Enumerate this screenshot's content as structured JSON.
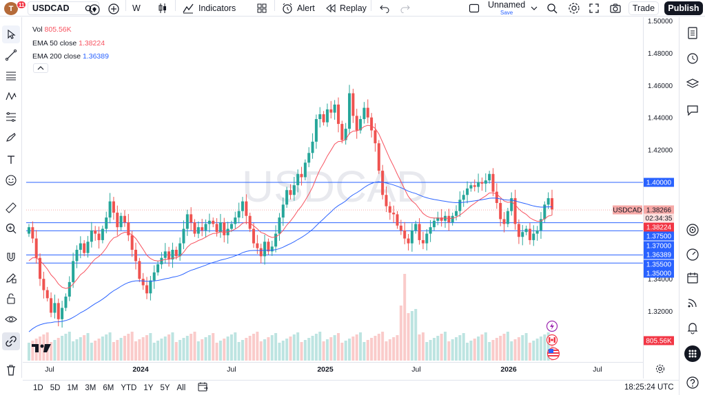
{
  "topbar": {
    "avatar_letter": "T",
    "notification_count": "11",
    "symbol": "USDCAD",
    "interval": "W",
    "indicators_label": "Indicators",
    "alert_label": "Alert",
    "replay_label": "Replay",
    "layout_name": "Unnamed",
    "layout_status": "Save",
    "trade_label": "Trade",
    "publish_label": "Publish"
  },
  "legend": {
    "vol_label": "Vol",
    "vol_value": "805.56K",
    "ema50_label": "EMA 50 close",
    "ema50_value": "1.38224",
    "ema200_label": "EMA 200 close",
    "ema200_value": "1.36389"
  },
  "watermark": "USDCAD",
  "price_axis": {
    "ticks": [
      "1.50000",
      "1.48000",
      "1.46000",
      "1.44000",
      "1.42000",
      "1.40000",
      "1.37000",
      "1.35500",
      "1.34000",
      "1.32000"
    ],
    "tags": [
      {
        "text": "1.40000",
        "color": "#2962ff",
        "price": 1.4
      },
      {
        "text": "USDCAD",
        "color": "#f7a9a7",
        "price": 1.38266
      },
      {
        "text": "1.38266",
        "color": "#f7a9a7",
        "price": 1.38266
      },
      {
        "text": "02:34:35",
        "color": "#f7a9a7",
        "price": 1.38266
      },
      {
        "text": "1.38224",
        "color": "#f23645",
        "price": 1.38224
      },
      {
        "text": "1.37500",
        "color": "#2962ff",
        "price": 1.375
      },
      {
        "text": "1.37000",
        "color": "#2962ff",
        "price": 1.37
      },
      {
        "text": "1.36389",
        "color": "#2962ff",
        "price": 1.36389
      },
      {
        "text": "1.35500",
        "color": "#2962ff",
        "price": 1.355
      },
      {
        "text": "1.35000",
        "color": "#2962ff",
        "price": 1.35
      },
      {
        "text": "805.56K",
        "color": "#f23645",
        "price": null
      }
    ]
  },
  "time_axis": {
    "labels": [
      "Jul",
      "2024",
      "Jul",
      "2025",
      "Jul",
      "2026",
      "Jul"
    ]
  },
  "horizontal_lines": [
    1.4,
    1.375,
    1.37,
    1.355,
    1.35
  ],
  "bottombar": {
    "timeframes": [
      "1D",
      "5D",
      "1M",
      "3M",
      "6M",
      "YTD",
      "1Y",
      "5Y",
      "All"
    ],
    "clock": "18:25:24 UTC"
  },
  "colors": {
    "up": "#26a69a",
    "down": "#ef5350",
    "ema50": "#f7525f",
    "ema200": "#2962ff",
    "hline": "#2962ff"
  },
  "chart_data": {
    "type": "candlestick",
    "symbol": "USDCAD",
    "interval": "W",
    "ylim": [
      1.3,
      1.5
    ],
    "closes": [
      1.372,
      1.365,
      1.353,
      1.34,
      1.333,
      1.328,
      1.319,
      1.325,
      1.315,
      1.322,
      1.329,
      1.338,
      1.351,
      1.358,
      1.362,
      1.356,
      1.363,
      1.37,
      1.368,
      1.364,
      1.371,
      1.378,
      1.388,
      1.381,
      1.372,
      1.379,
      1.375,
      1.367,
      1.358,
      1.351,
      1.34,
      1.336,
      1.331,
      1.339,
      1.344,
      1.349,
      1.353,
      1.357,
      1.352,
      1.358,
      1.354,
      1.362,
      1.371,
      1.38,
      1.375,
      1.368,
      1.372,
      1.37,
      1.374,
      1.376,
      1.374,
      1.369,
      1.375,
      1.367,
      1.371,
      1.374,
      1.378,
      1.382,
      1.388,
      1.379,
      1.371,
      1.362,
      1.359,
      1.354,
      1.363,
      1.357,
      1.36,
      1.368,
      1.378,
      1.386,
      1.395,
      1.392,
      1.398,
      1.405,
      1.403,
      1.412,
      1.418,
      1.425,
      1.439,
      1.442,
      1.437,
      1.445,
      1.443,
      1.448,
      1.436,
      1.426,
      1.433,
      1.455,
      1.441,
      1.432,
      1.439,
      1.446,
      1.44,
      1.432,
      1.424,
      1.407,
      1.392,
      1.385,
      1.381,
      1.38,
      1.373,
      1.37,
      1.365,
      1.362,
      1.37,
      1.374,
      1.364,
      1.362,
      1.368,
      1.372,
      1.376,
      1.378,
      1.376,
      1.379,
      1.375,
      1.379,
      1.382,
      1.389,
      1.392,
      1.396,
      1.398,
      1.397,
      1.4,
      1.399,
      1.401,
      1.405,
      1.394,
      1.387,
      1.377,
      1.374,
      1.382,
      1.39,
      1.374,
      1.366,
      1.369,
      1.371,
      1.364,
      1.368,
      1.37,
      1.377,
      1.386,
      1.39,
      1.383
    ]
  }
}
